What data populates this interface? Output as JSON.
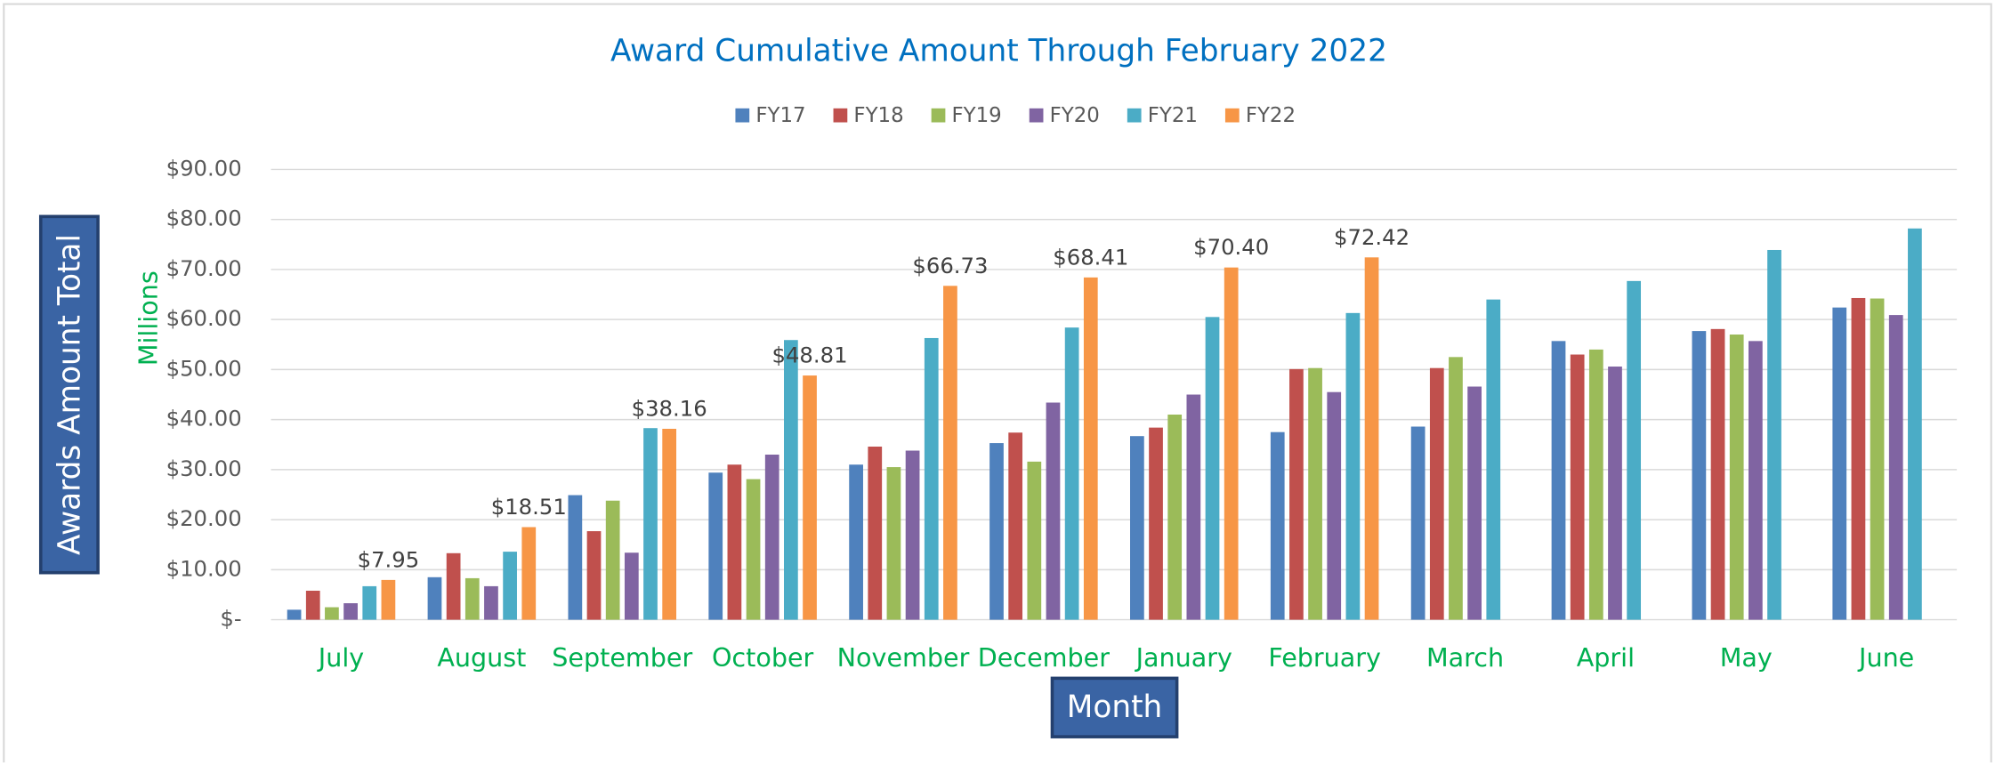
{
  "chart_data": {
    "type": "bar",
    "title": "Award Cumulative Amount Through February 2022",
    "y_axis_label": "Awards Amount Total",
    "y_axis_unit": "Millions",
    "x_axis_label": "Month",
    "categories": [
      "July",
      "August",
      "September",
      "October",
      "November",
      "December",
      "January",
      "February",
      "March",
      "April",
      "May",
      "June"
    ],
    "series": [
      {
        "name": "FY17",
        "color": "#4f81bd",
        "values": [
          2.0,
          8.5,
          24.9,
          29.4,
          31.0,
          35.3,
          36.7,
          37.5,
          38.6,
          55.7,
          57.7,
          62.4
        ]
      },
      {
        "name": "FY18",
        "color": "#c0504d",
        "values": [
          5.8,
          13.3,
          17.7,
          31.0,
          34.6,
          37.4,
          38.4,
          50.1,
          50.3,
          53.0,
          58.1,
          64.3
        ]
      },
      {
        "name": "FY19",
        "color": "#9bbb59",
        "values": [
          2.5,
          8.3,
          23.8,
          28.1,
          30.5,
          31.6,
          41.0,
          50.3,
          52.5,
          54.0,
          57.0,
          64.2
        ]
      },
      {
        "name": "FY20",
        "color": "#8064a2",
        "values": [
          3.3,
          6.7,
          13.4,
          33.0,
          33.8,
          43.4,
          45.0,
          45.5,
          46.6,
          50.6,
          55.7,
          60.9
        ]
      },
      {
        "name": "FY21",
        "color": "#4bacc6",
        "values": [
          6.7,
          13.6,
          38.3,
          55.9,
          56.3,
          58.4,
          60.5,
          61.3,
          64.0,
          67.7,
          73.9,
          78.2
        ]
      },
      {
        "name": "FY22",
        "color": "#f79646",
        "values": [
          7.95,
          18.51,
          38.16,
          48.81,
          66.73,
          68.41,
          70.4,
          72.42,
          null,
          null,
          null,
          null
        ],
        "value_labels": [
          "$7.95",
          "$18.51",
          "$38.16",
          "$48.81",
          "$66.73",
          "$68.41",
          "$70.40",
          "$72.42",
          null,
          null,
          null,
          null
        ]
      }
    ],
    "ylim": [
      0,
      90
    ],
    "yticks": [
      {
        "value": 0,
        "label": "$-"
      },
      {
        "value": 10,
        "label": "$10.00"
      },
      {
        "value": 20,
        "label": "$20.00"
      },
      {
        "value": 30,
        "label": "$30.00"
      },
      {
        "value": 40,
        "label": "$40.00"
      },
      {
        "value": 50,
        "label": "$50.00"
      },
      {
        "value": 60,
        "label": "$60.00"
      },
      {
        "value": 70,
        "label": "$70.00"
      },
      {
        "value": 80,
        "label": "$80.00"
      },
      {
        "value": 90,
        "label": "$90.00"
      }
    ],
    "grid": true,
    "legend": "top"
  }
}
